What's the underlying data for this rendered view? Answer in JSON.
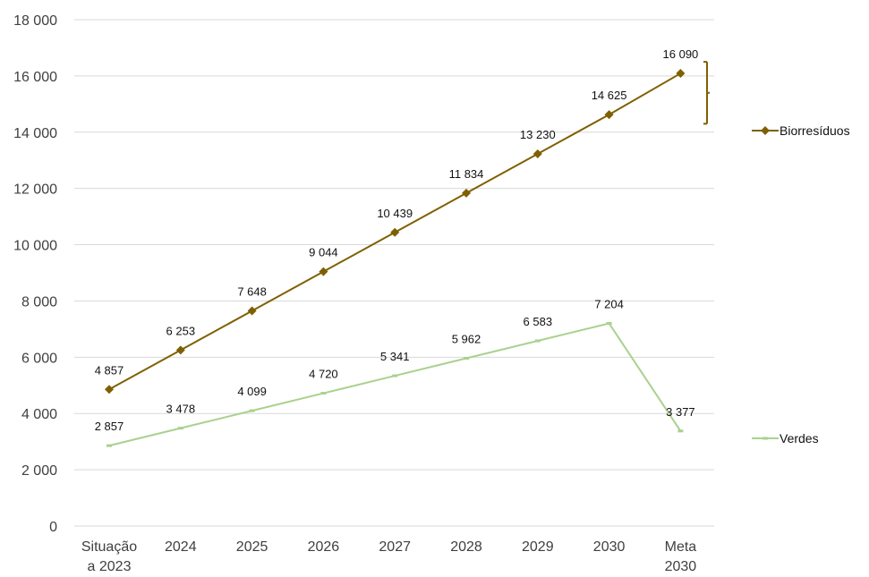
{
  "chart_data": {
    "type": "line",
    "categories": [
      "Situação a 2023",
      "2024",
      "2025",
      "2026",
      "2027",
      "2028",
      "2029",
      "2030",
      "Meta 2030"
    ],
    "category_lines": [
      [
        "Situação",
        "a 2023"
      ],
      [
        "2024"
      ],
      [
        "2025"
      ],
      [
        "2026"
      ],
      [
        "2027"
      ],
      [
        "2028"
      ],
      [
        "2029"
      ],
      [
        "2030"
      ],
      [
        "Meta",
        "2030"
      ]
    ],
    "ylim": [
      0,
      18000
    ],
    "yticks": [
      0,
      2000,
      4000,
      6000,
      8000,
      10000,
      12000,
      14000,
      16000,
      18000
    ],
    "ytick_labels": [
      "0",
      "2 000",
      "4 000",
      "6 000",
      "8 000",
      "10 000",
      "12 000",
      "14 000",
      "16 000",
      "18 000"
    ],
    "grid": true,
    "legend_position": "right",
    "series": [
      {
        "name": "Biorresíduos",
        "color": "#7f6000",
        "marker": "diamond",
        "values": [
          4857,
          6253,
          7648,
          9044,
          10439,
          11834,
          13230,
          14625,
          16090
        ],
        "labels": [
          "4 857",
          "6 253",
          "7 648",
          "9 044",
          "10 439",
          "11 834",
          "13 230",
          "14 625",
          "16 090"
        ]
      },
      {
        "name": "Verdes",
        "color": "#a9d18e",
        "marker": "dash",
        "values": [
          2857,
          3478,
          4099,
          4720,
          5341,
          5962,
          6583,
          7204,
          3377
        ],
        "labels": [
          "2 857",
          "3 478",
          "4 099",
          "4 720",
          "5 341",
          "5 962",
          "6 583",
          "7 204",
          "3 377"
        ]
      }
    ]
  }
}
